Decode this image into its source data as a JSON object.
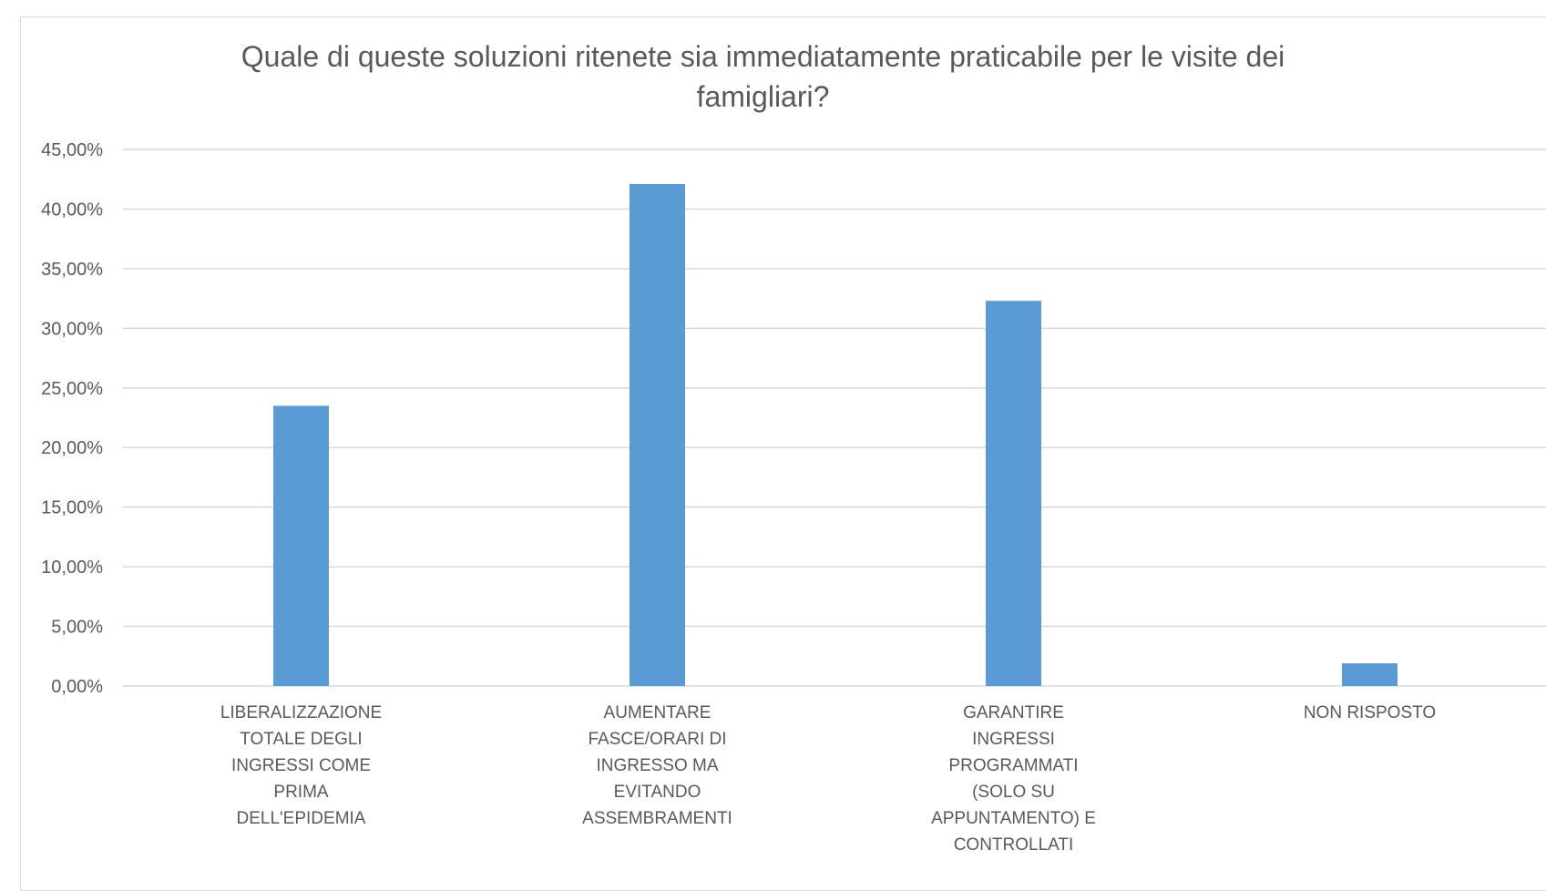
{
  "chart_data": {
    "type": "bar",
    "title": "Quale di queste soluzioni ritenete sia immediatamente praticabile per le visite dei famigliari?",
    "categories": [
      [
        "LIBERALIZZAZIONE",
        "TOTALE DEGLI",
        "INGRESSI COME",
        "PRIMA",
        "DELL'EPIDEMIA"
      ],
      [
        "AUMENTARE",
        "FASCE/ORARI DI",
        "INGRESSO MA",
        "EVITANDO",
        "ASSEMBRAMENTI"
      ],
      [
        "GARANTIRE",
        "INGRESSI",
        "PROGRAMMATI",
        "(SOLO SU",
        "APPUNTAMENTO) E",
        "CONTROLLATI"
      ],
      [
        "NON RISPOSTO"
      ]
    ],
    "values": [
      0.235,
      0.421,
      0.323,
      0.019
    ],
    "ylim": [
      0,
      0.45
    ],
    "yticks": [
      0,
      0.05,
      0.1,
      0.15,
      0.2,
      0.25,
      0.3,
      0.35,
      0.4,
      0.45
    ],
    "ytick_labels": [
      "0,00%",
      "5,00%",
      "10,00%",
      "15,00%",
      "20,00%",
      "25,00%",
      "30,00%",
      "35,00%",
      "40,00%",
      "45,00%"
    ],
    "xlabel": "",
    "ylabel": "",
    "grid": true,
    "legend": "none",
    "bar_color": "#5b9bd5",
    "grid_color": "#d9d9d9"
  }
}
